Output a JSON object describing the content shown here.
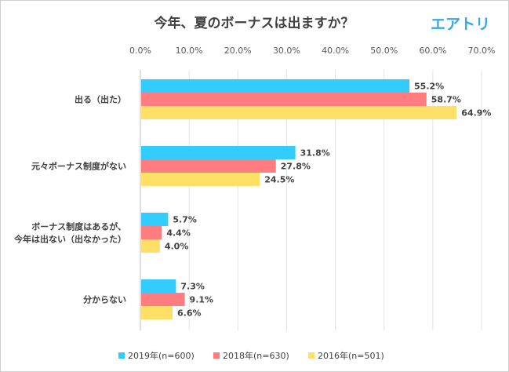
{
  "brand": {
    "logo_text": "エアトリ",
    "logo_color": "#3aa6e6"
  },
  "chart_data": {
    "type": "bar",
    "orientation": "horizontal",
    "title": "今年、夏のボーナスは出ますか？",
    "categories": [
      [
        "出る（出た）"
      ],
      [
        "元々ボーナス制度がない"
      ],
      [
        "ボーナス制度はあるが、",
        "今年は出ない（出なかった）"
      ],
      [
        "分からない"
      ]
    ],
    "series": [
      {
        "name": "2019年(n=600)",
        "color": "#33ccff",
        "values": [
          55.2,
          31.8,
          5.7,
          7.3
        ],
        "labels": [
          "55.2%",
          "31.8%",
          "5.7%",
          "7.3%"
        ]
      },
      {
        "name": "2018年(n=630)",
        "color": "#ff7c80",
        "values": [
          58.7,
          27.8,
          4.4,
          9.1
        ],
        "labels": [
          "58.7%",
          "27.8%",
          "4.4%",
          "9.1%"
        ]
      },
      {
        "name": "2016年(n=501)",
        "color": "#ffe066",
        "values": [
          64.9,
          24.5,
          4.0,
          6.6
        ],
        "labels": [
          "64.9%",
          "24.5%",
          "4.0%",
          "6.6%"
        ]
      }
    ],
    "xlim": [
      0,
      70
    ],
    "x_ticks": [
      "0.0%",
      "10.0%",
      "20.0%",
      "30.0%",
      "40.0%",
      "50.0%",
      "60.0%",
      "70.0%"
    ],
    "x_tick_values": [
      0,
      10,
      20,
      30,
      40,
      50,
      60,
      70
    ],
    "axis_position": "top",
    "grid": true,
    "legend_position": "bottom"
  }
}
